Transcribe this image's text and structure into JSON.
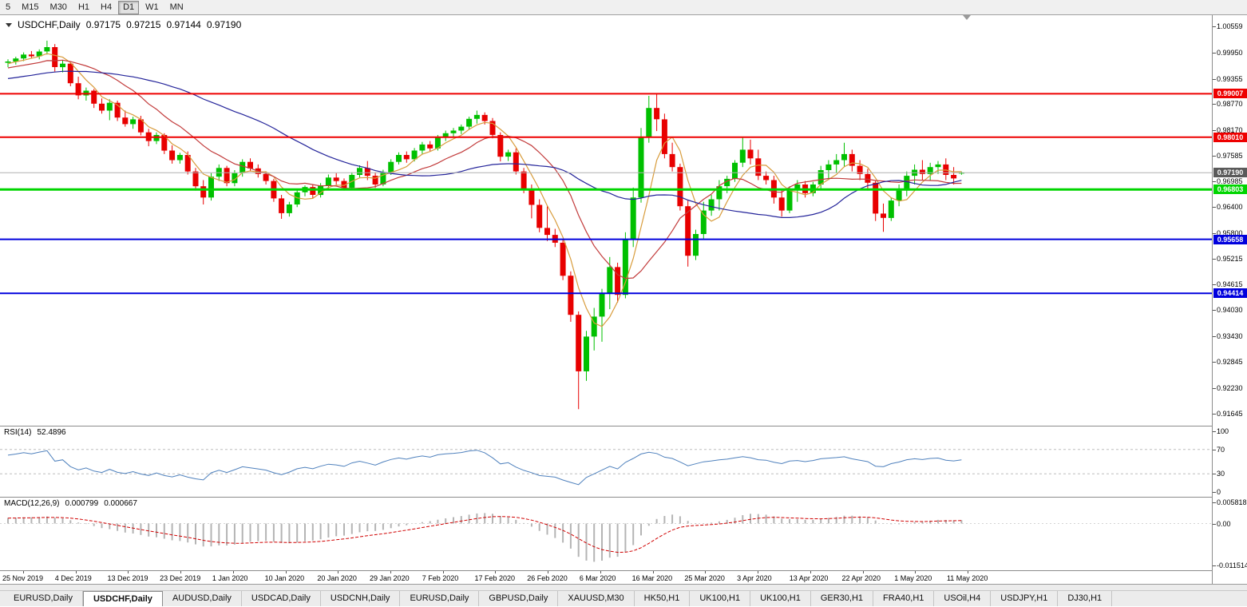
{
  "toolbar": {
    "timeframes": [
      {
        "label": "5",
        "active": false
      },
      {
        "label": "M15",
        "active": false
      },
      {
        "label": "M30",
        "active": false
      },
      {
        "label": "H1",
        "active": false
      },
      {
        "label": "H4",
        "active": false
      },
      {
        "label": "D1",
        "active": true
      },
      {
        "label": "W1",
        "active": false
      },
      {
        "label": "MN",
        "active": false
      }
    ]
  },
  "chart_header": {
    "symbol": "USDCHF,Daily",
    "open": "0.97175",
    "high": "0.97215",
    "low": "0.97144",
    "close": "0.97190"
  },
  "chart_data": {
    "type": "candlestick",
    "symbol": "USDCHF",
    "timeframe": "Daily",
    "ylim": [
      0.91369,
      1.00816
    ],
    "y_ticks": [
      1.00559,
      0.9995,
      0.99355,
      0.9877,
      0.9817,
      0.97585,
      0.96985,
      0.964,
      0.958,
      0.95215,
      0.94615,
      0.9403,
      0.9343,
      0.92845,
      0.9223,
      0.91645
    ],
    "x_labels": [
      "25 Nov 2019",
      "4 Dec 2019",
      "13 Dec 2019",
      "23 Dec 2019",
      "1 Jan 2020",
      "10 Jan 2020",
      "20 Jan 2020",
      "29 Jan 2020",
      "7 Feb 2020",
      "17 Feb 2020",
      "26 Feb 2020",
      "6 Mar 2020",
      "16 Mar 2020",
      "25 Mar 2020",
      "3 Apr 2020",
      "13 Apr 2020",
      "22 Apr 2020",
      "1 May 2020",
      "11 May 2020"
    ],
    "colors": {
      "bull": "#00c000",
      "bear": "#e80000"
    },
    "moving_averages": [
      {
        "period": 5,
        "color": "#d89c3c"
      },
      {
        "period": 13,
        "color": "#c23b3b"
      },
      {
        "period": 34,
        "color": "#24249a"
      }
    ],
    "hlines": [
      {
        "value": 0.99007,
        "label": "0.99007",
        "color": "#ee0000",
        "width": 2
      },
      {
        "value": 0.9801,
        "label": "0.98010",
        "color": "#ee0000",
        "width": 2
      },
      {
        "value": 0.96803,
        "label": "0.96803",
        "color": "#00d500",
        "width": 3
      },
      {
        "value": 0.95658,
        "label": "0.95658",
        "color": "#0000dd",
        "width": 2
      },
      {
        "value": 0.94414,
        "label": "0.94414",
        "color": "#0000dd",
        "width": 2
      }
    ],
    "current_price": {
      "value": 0.9719,
      "label": "0.97190",
      "line_color": "#b0b0b0",
      "box_color": "#5a5a5a"
    },
    "ohlc": [
      [
        0.9972,
        0.998,
        0.9962,
        0.9975
      ],
      [
        0.9975,
        0.9986,
        0.9968,
        0.9982
      ],
      [
        0.9982,
        0.9996,
        0.9976,
        0.9991
      ],
      [
        0.9991,
        0.9999,
        0.9983,
        0.9987
      ],
      [
        0.9987,
        1.0003,
        0.998,
        0.9998
      ],
      [
        0.9998,
        1.0023,
        0.9991,
        1.0008
      ],
      [
        1.0008,
        1.0015,
        0.9952,
        0.9962
      ],
      [
        0.9962,
        0.9978,
        0.995,
        0.997
      ],
      [
        0.997,
        0.9975,
        0.9918,
        0.9925
      ],
      [
        0.9925,
        0.994,
        0.9888,
        0.9897
      ],
      [
        0.9897,
        0.9915,
        0.9885,
        0.9908
      ],
      [
        0.9908,
        0.9912,
        0.9868,
        0.9878
      ],
      [
        0.9878,
        0.989,
        0.9855,
        0.9862
      ],
      [
        0.9862,
        0.9888,
        0.984,
        0.988
      ],
      [
        0.988,
        0.9885,
        0.9838,
        0.9846
      ],
      [
        0.9846,
        0.9862,
        0.9825,
        0.9831
      ],
      [
        0.9831,
        0.9848,
        0.982,
        0.9842
      ],
      [
        0.9842,
        0.985,
        0.9805,
        0.9812
      ],
      [
        0.9812,
        0.982,
        0.978,
        0.9792
      ],
      [
        0.9792,
        0.9812,
        0.9785,
        0.9806
      ],
      [
        0.9806,
        0.981,
        0.9762,
        0.977
      ],
      [
        0.977,
        0.9782,
        0.974,
        0.9748
      ],
      [
        0.9748,
        0.9765,
        0.974,
        0.976
      ],
      [
        0.976,
        0.9768,
        0.9715,
        0.9722
      ],
      [
        0.9722,
        0.973,
        0.9678,
        0.9688
      ],
      [
        0.9688,
        0.9702,
        0.9646,
        0.9662
      ],
      [
        0.9662,
        0.9718,
        0.9655,
        0.971
      ],
      [
        0.971,
        0.9738,
        0.97,
        0.973
      ],
      [
        0.973,
        0.9735,
        0.9688,
        0.9695
      ],
      [
        0.9695,
        0.9725,
        0.9688,
        0.9718
      ],
      [
        0.9718,
        0.975,
        0.971,
        0.9744
      ],
      [
        0.9744,
        0.9752,
        0.9722,
        0.9729
      ],
      [
        0.9729,
        0.9738,
        0.9708,
        0.9716
      ],
      [
        0.9716,
        0.9722,
        0.9692,
        0.97
      ],
      [
        0.97,
        0.9705,
        0.9652,
        0.966
      ],
      [
        0.966,
        0.9668,
        0.9613,
        0.9626
      ],
      [
        0.9626,
        0.9652,
        0.9618,
        0.9646
      ],
      [
        0.9646,
        0.968,
        0.964,
        0.9674
      ],
      [
        0.9674,
        0.969,
        0.9665,
        0.9686
      ],
      [
        0.9686,
        0.9692,
        0.966,
        0.9668
      ],
      [
        0.9668,
        0.9695,
        0.9662,
        0.969
      ],
      [
        0.969,
        0.9715,
        0.9682,
        0.9708
      ],
      [
        0.9708,
        0.9718,
        0.9692,
        0.97
      ],
      [
        0.97,
        0.9706,
        0.9678,
        0.9684
      ],
      [
        0.9684,
        0.972,
        0.968,
        0.9714
      ],
      [
        0.9714,
        0.9736,
        0.9708,
        0.973
      ],
      [
        0.973,
        0.9746,
        0.9702,
        0.9712
      ],
      [
        0.9712,
        0.972,
        0.9684,
        0.9692
      ],
      [
        0.9692,
        0.9726,
        0.9688,
        0.972
      ],
      [
        0.972,
        0.975,
        0.9714,
        0.9744
      ],
      [
        0.9744,
        0.9766,
        0.9738,
        0.976
      ],
      [
        0.976,
        0.9768,
        0.9742,
        0.975
      ],
      [
        0.975,
        0.9776,
        0.9745,
        0.977
      ],
      [
        0.977,
        0.979,
        0.9762,
        0.9784
      ],
      [
        0.9784,
        0.9792,
        0.9768,
        0.9775
      ],
      [
        0.9775,
        0.9806,
        0.977,
        0.98
      ],
      [
        0.98,
        0.9816,
        0.9792,
        0.981
      ],
      [
        0.981,
        0.9822,
        0.98,
        0.9816
      ],
      [
        0.9816,
        0.983,
        0.9808,
        0.9825
      ],
      [
        0.9825,
        0.9848,
        0.9818,
        0.9843
      ],
      [
        0.9843,
        0.9862,
        0.9832,
        0.9852
      ],
      [
        0.9852,
        0.9858,
        0.983,
        0.9838
      ],
      [
        0.9838,
        0.9845,
        0.9798,
        0.9806
      ],
      [
        0.9806,
        0.9812,
        0.9745,
        0.9756
      ],
      [
        0.9756,
        0.9772,
        0.9746,
        0.9766
      ],
      [
        0.9766,
        0.9775,
        0.9715,
        0.9722
      ],
      [
        0.9722,
        0.973,
        0.9672,
        0.968
      ],
      [
        0.968,
        0.9692,
        0.9614,
        0.9645
      ],
      [
        0.9645,
        0.9658,
        0.9582,
        0.9592
      ],
      [
        0.9592,
        0.9642,
        0.9562,
        0.9576
      ],
      [
        0.9576,
        0.959,
        0.9548,
        0.9558
      ],
      [
        0.9558,
        0.9565,
        0.9472,
        0.9482
      ],
      [
        0.9482,
        0.9492,
        0.9376,
        0.9392
      ],
      [
        0.9392,
        0.94,
        0.9175,
        0.9262
      ],
      [
        0.9262,
        0.9355,
        0.924,
        0.9342
      ],
      [
        0.9342,
        0.9408,
        0.931,
        0.9388
      ],
      [
        0.9388,
        0.9452,
        0.933,
        0.9442
      ],
      [
        0.9442,
        0.9525,
        0.9405,
        0.9502
      ],
      [
        0.9502,
        0.9512,
        0.942,
        0.9438
      ],
      [
        0.9438,
        0.9582,
        0.943,
        0.9565
      ],
      [
        0.9565,
        0.9685,
        0.9548,
        0.9662
      ],
      [
        0.9662,
        0.9822,
        0.965,
        0.9802
      ],
      [
        0.9802,
        0.9896,
        0.9788,
        0.9868
      ],
      [
        0.9868,
        0.9901,
        0.9815,
        0.9842
      ],
      [
        0.9842,
        0.9855,
        0.9752,
        0.9762
      ],
      [
        0.9762,
        0.9788,
        0.9722,
        0.9732
      ],
      [
        0.9732,
        0.974,
        0.9632,
        0.9642
      ],
      [
        0.9642,
        0.9655,
        0.9503,
        0.9528
      ],
      [
        0.9528,
        0.9588,
        0.9518,
        0.9578
      ],
      [
        0.9578,
        0.9652,
        0.9565,
        0.9632
      ],
      [
        0.9632,
        0.9668,
        0.962,
        0.9658
      ],
      [
        0.9658,
        0.9702,
        0.9632,
        0.9688
      ],
      [
        0.9688,
        0.9712,
        0.9672,
        0.9705
      ],
      [
        0.9705,
        0.9748,
        0.9698,
        0.9742
      ],
      [
        0.9742,
        0.9802,
        0.9732,
        0.9772
      ],
      [
        0.9772,
        0.9795,
        0.9738,
        0.9752
      ],
      [
        0.9752,
        0.9772,
        0.9702,
        0.9712
      ],
      [
        0.9712,
        0.9722,
        0.9692,
        0.9702
      ],
      [
        0.9702,
        0.9712,
        0.9648,
        0.9662
      ],
      [
        0.9662,
        0.9682,
        0.9618,
        0.9632
      ],
      [
        0.9632,
        0.9688,
        0.9626,
        0.9682
      ],
      [
        0.9682,
        0.9702,
        0.9652,
        0.9692
      ],
      [
        0.9692,
        0.97,
        0.9662,
        0.9672
      ],
      [
        0.9672,
        0.9698,
        0.9665,
        0.9692
      ],
      [
        0.9692,
        0.9735,
        0.9682,
        0.9725
      ],
      [
        0.9725,
        0.9748,
        0.9702,
        0.9738
      ],
      [
        0.9738,
        0.9762,
        0.9718,
        0.9748
      ],
      [
        0.9748,
        0.9788,
        0.9732,
        0.9762
      ],
      [
        0.9762,
        0.9772,
        0.9722,
        0.9735
      ],
      [
        0.9735,
        0.9748,
        0.9702,
        0.9716
      ],
      [
        0.9716,
        0.9728,
        0.9678,
        0.9696
      ],
      [
        0.9696,
        0.9702,
        0.9608,
        0.9625
      ],
      [
        0.9625,
        0.9648,
        0.9583,
        0.9615
      ],
      [
        0.9615,
        0.9662,
        0.9608,
        0.9655
      ],
      [
        0.9655,
        0.9692,
        0.9642,
        0.9678
      ],
      [
        0.9678,
        0.9722,
        0.9665,
        0.9712
      ],
      [
        0.9712,
        0.9738,
        0.9692,
        0.9726
      ],
      [
        0.9726,
        0.9748,
        0.9702,
        0.9716
      ],
      [
        0.9716,
        0.9742,
        0.9702,
        0.9732
      ],
      [
        0.9732,
        0.9746,
        0.9716,
        0.9738
      ],
      [
        0.9738,
        0.9752,
        0.9702,
        0.9714
      ],
      [
        0.9714,
        0.9732,
        0.9692,
        0.9706
      ],
      [
        0.97175,
        0.97215,
        0.97144,
        0.9719
      ]
    ]
  },
  "rsi": {
    "name": "RSI(14)",
    "value": "52.4896",
    "period": 14,
    "color": "#4f81bd",
    "levels": [
      70,
      30
    ],
    "axis_ticks": [
      100,
      70,
      30,
      0
    ]
  },
  "macd": {
    "name": "MACD(12,26,9)",
    "value": "0.000799",
    "signal_value": "0.000667",
    "fast": 12,
    "slow": 26,
    "signal_period": 9,
    "histogram_color": "#b4b4b4",
    "signal_color": "#d00000",
    "scale_max": 0.005818,
    "scale_min": -0.011514,
    "axis_ticks": [
      {
        "label": "0.005818",
        "value": 0.005818
      },
      {
        "label": "0.00",
        "value": 0
      },
      {
        "label": "-0.011514",
        "value": -0.011514
      }
    ]
  },
  "tabs": [
    {
      "label": "EURUSD,Daily",
      "active": false
    },
    {
      "label": "USDCHF,Daily",
      "active": true
    },
    {
      "label": "AUDUSD,Daily",
      "active": false
    },
    {
      "label": "USDCAD,Daily",
      "active": false
    },
    {
      "label": "USDCNH,Daily",
      "active": false
    },
    {
      "label": "EURUSD,Daily",
      "active": false
    },
    {
      "label": "GBPUSD,Daily",
      "active": false
    },
    {
      "label": "XAUUSD,M30",
      "active": false
    },
    {
      "label": "HK50,H1",
      "active": false
    },
    {
      "label": "UK100,H1",
      "active": false
    },
    {
      "label": "UK100,H1",
      "active": false
    },
    {
      "label": "GER30,H1",
      "active": false
    },
    {
      "label": "FRA40,H1",
      "active": false
    },
    {
      "label": "USOil,H4",
      "active": false
    },
    {
      "label": "USDJPY,H1",
      "active": false
    },
    {
      "label": "DJ30,H1",
      "active": false
    }
  ]
}
